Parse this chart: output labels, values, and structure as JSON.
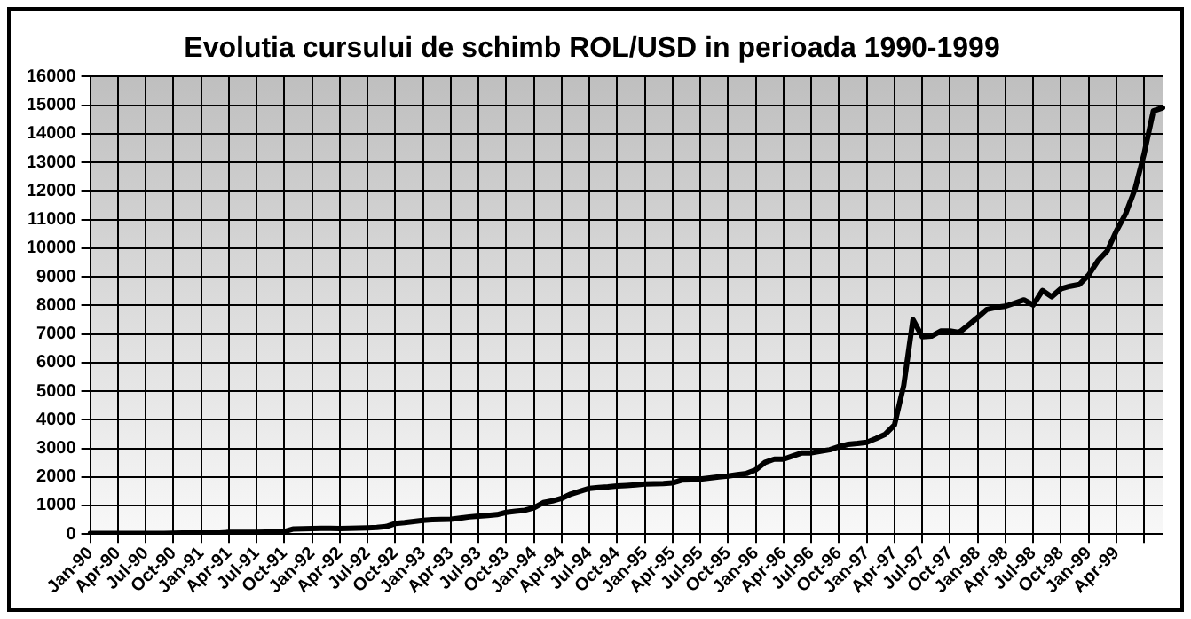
{
  "chart_data": {
    "type": "line",
    "title": "Evolutia cursului de schimb ROL/USD in perioada 1990-1999",
    "categories": [
      "Jan-90",
      null,
      null,
      "Apr-90",
      null,
      null,
      "Jul-90",
      null,
      null,
      "Oct-90",
      null,
      null,
      "Jan-91",
      null,
      null,
      "Apr-91",
      null,
      null,
      "Jul-91",
      null,
      null,
      "Oct-91",
      null,
      null,
      "Jan-92",
      null,
      null,
      "Apr-92",
      null,
      null,
      "Jul-92",
      null,
      null,
      "Oct-92",
      null,
      null,
      "Jan-93",
      null,
      null,
      "Apr-93",
      null,
      null,
      "Jul-93",
      null,
      null,
      "Oct-93",
      null,
      null,
      "Jan-94",
      null,
      null,
      "Apr-94",
      null,
      null,
      "Jul-94",
      null,
      null,
      "Oct-94",
      null,
      null,
      "Jan-95",
      null,
      null,
      "Apr-95",
      null,
      null,
      "Jul-95",
      null,
      null,
      "Oct-95",
      null,
      null,
      "Jan-96",
      null,
      null,
      "Apr-96",
      null,
      null,
      "Jul-96",
      null,
      null,
      "Oct-96",
      null,
      null,
      "Jan-97",
      null,
      null,
      "Apr-97",
      null,
      null,
      "Jul-97",
      null,
      null,
      "Oct-97",
      null,
      null,
      "Jan-98",
      null,
      null,
      "Apr-98",
      null,
      null,
      "Jul-98",
      null,
      null,
      "Oct-98",
      null,
      null,
      "Jan-99",
      null,
      null,
      "Apr-99",
      null,
      null,
      null,
      null,
      null
    ],
    "values": [
      21,
      21,
      21,
      22,
      22,
      22,
      22,
      23,
      24,
      30,
      35,
      35,
      35,
      35,
      40,
      60,
      60,
      62,
      65,
      70,
      80,
      90,
      180,
      185,
      190,
      200,
      200,
      195,
      200,
      210,
      220,
      230,
      260,
      370,
      400,
      440,
      480,
      500,
      510,
      520,
      560,
      600,
      630,
      650,
      680,
      760,
      800,
      830,
      920,
      1100,
      1160,
      1250,
      1400,
      1500,
      1600,
      1630,
      1650,
      1680,
      1700,
      1720,
      1750,
      1760,
      1770,
      1790,
      1890,
      1900,
      1920,
      1960,
      2000,
      2030,
      2080,
      2120,
      2250,
      2510,
      2620,
      2620,
      2730,
      2840,
      2840,
      2900,
      2950,
      3060,
      3140,
      3170,
      3210,
      3340,
      3490,
      3820,
      5200,
      7500,
      6900,
      6920,
      7100,
      7100,
      7050,
      7310,
      7580,
      7860,
      7930,
      7970,
      8080,
      8190,
      8010,
      8520,
      8300,
      8580,
      8670,
      8730,
      9060,
      9560,
      9900,
      10600,
      11200,
      12050,
      13300,
      14800,
      14910
    ],
    "color": "#000000",
    "ylim": [
      0,
      16000
    ],
    "yticks": [
      0,
      1000,
      2000,
      3000,
      4000,
      5000,
      6000,
      7000,
      8000,
      9000,
      10000,
      11000,
      12000,
      13000,
      14000,
      15000,
      16000
    ],
    "grid": true,
    "legend": false,
    "marker": "none",
    "line_style": "solid"
  }
}
